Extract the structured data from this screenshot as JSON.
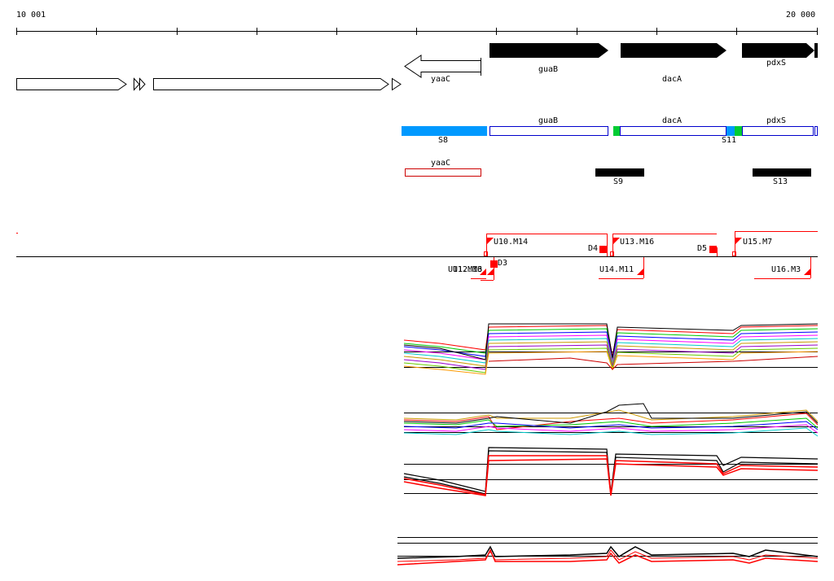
{
  "ruler": {
    "start_label": "10 001",
    "end_label": "20 000"
  },
  "annotation_genes": [
    {
      "label": "yaaC"
    },
    {
      "label": "guaB"
    },
    {
      "label": "dacA"
    },
    {
      "label": "pdxS"
    }
  ],
  "segment_track": {
    "segments": [
      {
        "label": "S8"
      },
      {
        "label": "guaB"
      },
      {
        "label": "dacA"
      },
      {
        "label": "S11"
      },
      {
        "label": "pdxS"
      }
    ]
  },
  "segment_track_2": {
    "segments": [
      {
        "label": "yaaC"
      },
      {
        "label": "S9"
      },
      {
        "label": "S13"
      }
    ]
  },
  "transcription_units": {
    "upper": [
      {
        "label": "U10.M14"
      },
      {
        "label": "U13.M16"
      },
      {
        "label": "U15.M7"
      },
      {
        "label": "D4"
      },
      {
        "label": "D5"
      }
    ],
    "lower": [
      {
        "label": "U11.M13"
      },
      {
        "label": "U12.M6"
      },
      {
        "label": "D3"
      },
      {
        "label": "U14.M11"
      },
      {
        "label": "U16.M3"
      }
    ]
  },
  "colors": {
    "gene_fill": "#000000",
    "segment_blue": "#0099ff",
    "segment_outline": "#0000cc",
    "segment_green": "#00cc33",
    "yaac_outline": "#cc0000",
    "tu_red": "#ff0000"
  }
}
